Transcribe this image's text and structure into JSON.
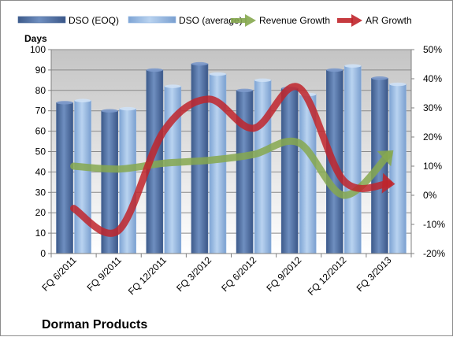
{
  "chart_data": {
    "type": "bar",
    "title": "Dorman Products",
    "ylabel": "Days",
    "categories": [
      "FQ 6/2011",
      "FQ 9/2011",
      "FQ 12/2011",
      "FQ 3/2012",
      "FQ 6/2012",
      "FQ 9/2012",
      "FQ 12/2012",
      "FQ 3/2013"
    ],
    "ylim": [
      0,
      100
    ],
    "y2lim": [
      -20,
      50
    ],
    "yticks": [
      "0",
      "10",
      "20",
      "30",
      "40",
      "50",
      "60",
      "70",
      "80",
      "90",
      "100"
    ],
    "y2ticks": [
      "-20%",
      "-10%",
      "0%",
      "10%",
      "20%",
      "30%",
      "40%",
      "50%"
    ],
    "grid": true,
    "legend_position": "top",
    "series": [
      {
        "name": "DSO (EOQ)",
        "type": "bar",
        "axis": "left",
        "color": "#4a6a9c",
        "values": [
          74,
          70,
          90,
          93,
          80,
          81,
          90,
          86
        ]
      },
      {
        "name": "DSO (average)",
        "type": "bar",
        "axis": "left",
        "color": "#8eb4e3",
        "values": [
          75,
          71,
          82,
          88,
          85,
          78,
          92,
          83
        ]
      },
      {
        "name": "Revenue Growth",
        "type": "line",
        "axis": "right",
        "color": "#86a84f",
        "values": [
          10,
          9,
          11,
          12,
          14,
          18,
          0,
          14
        ]
      },
      {
        "name": "AR Growth",
        "type": "line",
        "axis": "right",
        "color": "#c0252b",
        "values": [
          -4.5,
          -12,
          22,
          33,
          23,
          37,
          5,
          4
        ]
      }
    ]
  }
}
